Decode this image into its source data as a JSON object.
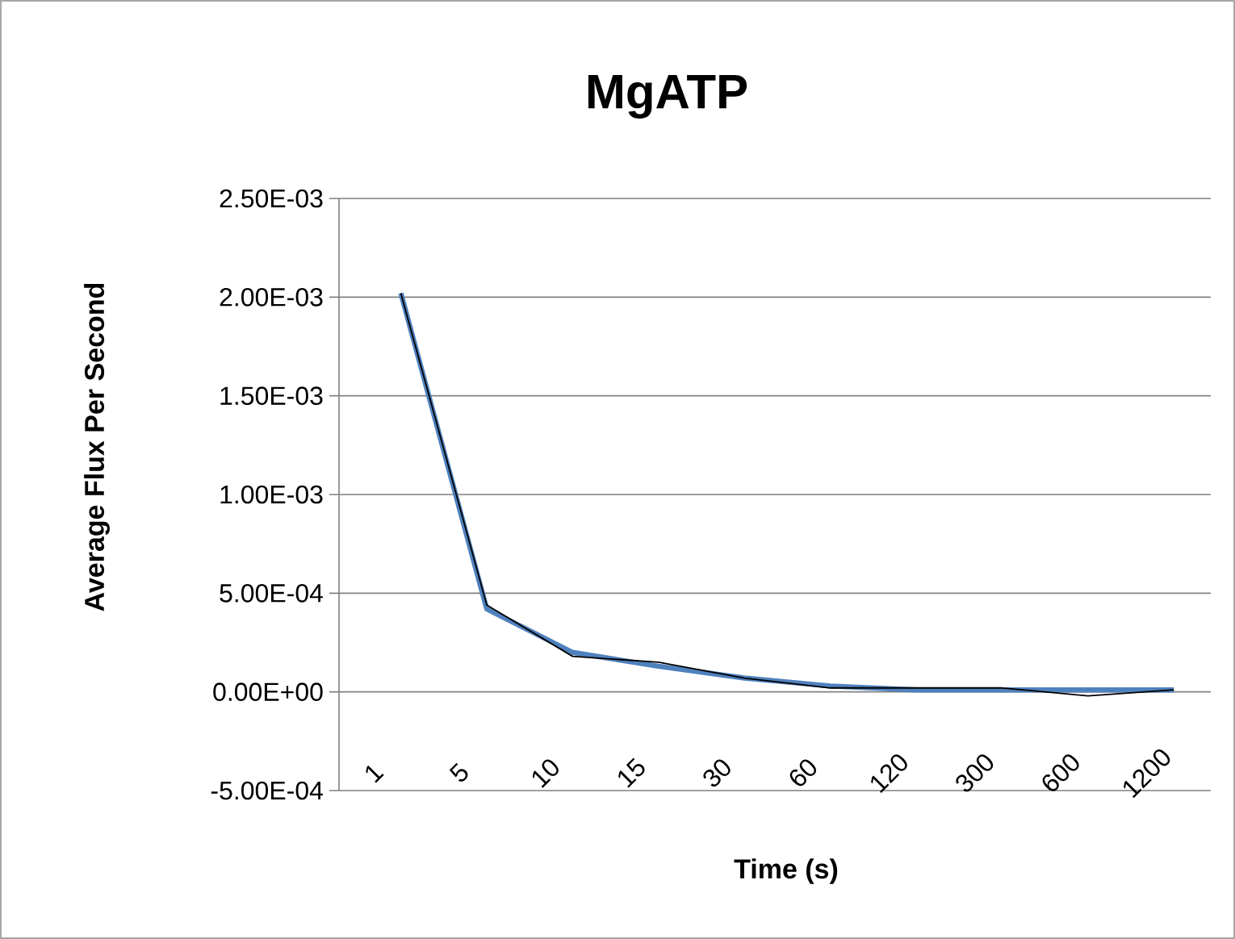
{
  "chart_data": {
    "type": "line",
    "title": "MgATP",
    "xlabel": "Time (s)",
    "ylabel": "Average Flux Per Second",
    "categories": [
      "1",
      "5",
      "10",
      "15",
      "30",
      "60",
      "120",
      "300",
      "600",
      "1200"
    ],
    "series": [
      {
        "color": "#4f81bd",
        "values": [
          0.00202,
          0.00042,
          0.0002,
          0.00013,
          7e-05,
          3e-05,
          1e-05,
          1e-05,
          1e-05,
          1e-05
        ]
      },
      {
        "color": "#000000",
        "values": [
          0.00202,
          0.00044,
          0.00018,
          0.00015,
          7e-05,
          2e-05,
          2e-05,
          2e-05,
          -2e-05,
          1e-05
        ]
      }
    ],
    "ylim": [
      -0.0005,
      0.0025
    ],
    "yticks": [
      {
        "value": -0.0005,
        "label": "-5.00E-04"
      },
      {
        "value": 0,
        "label": "0.00E+00"
      },
      {
        "value": 0.0005,
        "label": "5.00E-04"
      },
      {
        "value": 0.001,
        "label": "1.00E-03"
      },
      {
        "value": 0.0015,
        "label": "1.50E-03"
      },
      {
        "value": 0.002,
        "label": "2.00E-03"
      },
      {
        "value": 0.0025,
        "label": "2.50E-03"
      }
    ],
    "grid": "y",
    "marker": "none"
  }
}
